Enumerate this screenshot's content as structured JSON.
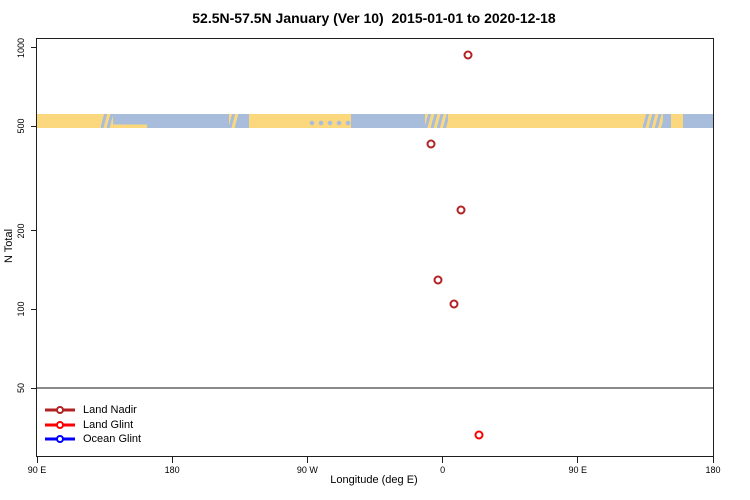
{
  "chart_data": {
    "type": "scatter",
    "title": "52.5N-57.5N January (Ver 10)  2015-01-01 to 2020-12-18",
    "xlabel": "Longitude (deg E)",
    "ylabel": "N Total",
    "y_scale": "log",
    "ylim": [
      27.5,
      1080
    ],
    "x_span_deg": 450,
    "x_start_lon_e": 90,
    "y_ticks": [
      1000,
      500,
      200,
      100,
      50
    ],
    "x_ticks": [
      {
        "axis_deg": 0,
        "label": "90 E"
      },
      {
        "axis_deg": 90,
        "label": "180"
      },
      {
        "axis_deg": 180,
        "label": "90 W"
      },
      {
        "axis_deg": 270,
        "label": "0"
      },
      {
        "axis_deg": 360,
        "label": "90 E"
      },
      {
        "axis_deg": 450,
        "label": "180"
      }
    ],
    "reference_line_n": 50,
    "series": [
      {
        "name": "Land Nadir",
        "color": "#B22222",
        "points": [
          {
            "lon_e": 17,
            "n": 940
          },
          {
            "lon_e": -8,
            "n": 430
          },
          {
            "lon_e": 12,
            "n": 240
          },
          {
            "lon_e": -3,
            "n": 130
          },
          {
            "lon_e": 7.5,
            "n": 105
          }
        ]
      },
      {
        "name": "Land Glint",
        "color": "#FF0000",
        "points": [
          {
            "lon_e": 24,
            "n": 33
          }
        ]
      },
      {
        "name": "Ocean Glint",
        "color": "#0000FF",
        "points": []
      }
    ],
    "map_strip": {
      "land_color": "#FBD77E",
      "ocean_color": "#A7BDDB",
      "segments": [
        {
          "f0": 0.0,
          "f1": 0.095,
          "type": "land"
        },
        {
          "f0": 0.095,
          "f1": 0.113,
          "type": "coast"
        },
        {
          "f0": 0.113,
          "f1": 0.163,
          "type": "shore"
        },
        {
          "f0": 0.163,
          "f1": 0.284,
          "type": "ocean"
        },
        {
          "f0": 0.284,
          "f1": 0.297,
          "type": "coast"
        },
        {
          "f0": 0.297,
          "f1": 0.314,
          "type": "ocean"
        },
        {
          "f0": 0.314,
          "f1": 0.402,
          "type": "land"
        },
        {
          "f0": 0.402,
          "f1": 0.465,
          "type": "bay"
        },
        {
          "f0": 0.465,
          "f1": 0.574,
          "type": "ocean"
        },
        {
          "f0": 0.574,
          "f1": 0.608,
          "type": "coast"
        },
        {
          "f0": 0.608,
          "f1": 0.896,
          "type": "land"
        },
        {
          "f0": 0.896,
          "f1": 0.926,
          "type": "coast"
        },
        {
          "f0": 0.926,
          "f1": 0.938,
          "type": "ocean"
        },
        {
          "f0": 0.938,
          "f1": 0.956,
          "type": "land"
        },
        {
          "f0": 0.956,
          "f1": 1.0,
          "type": "ocean"
        }
      ]
    },
    "legend_position": "bottom-left"
  },
  "legend": {
    "items": [
      {
        "label": "Land Nadir",
        "color": "#B22222"
      },
      {
        "label": "Land Glint",
        "color": "#FF0000"
      },
      {
        "label": "Ocean Glint",
        "color": "#0000FF"
      }
    ]
  }
}
